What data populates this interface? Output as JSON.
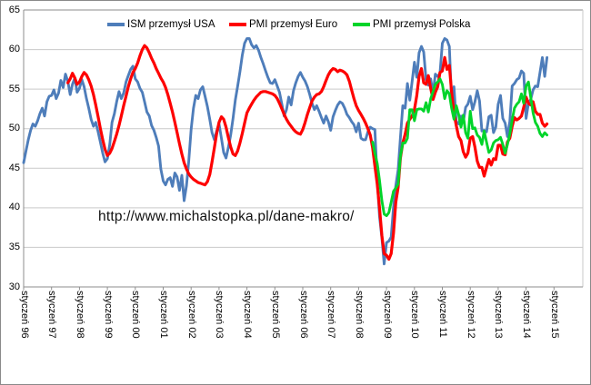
{
  "watermark": "http://www.michalstopka.pl/dane-makro/",
  "legend": [
    {
      "label": "ISM przemysł USA",
      "color": "#4E7DBA"
    },
    {
      "label": "PMI przemysł Euro",
      "color": "#FE0000"
    },
    {
      "label": "PMI przemysł Polska",
      "color": "#00D42A"
    }
  ],
  "colors": {
    "gridline": "#C9C9C9",
    "axis": "#8E8E8E",
    "background": "#FFFFFF"
  },
  "chart_data": {
    "type": "line",
    "title": "",
    "xlabel": "",
    "ylabel": "",
    "grid": true,
    "legend_position": "top-inside",
    "x_axis": {
      "unit": "month",
      "start": "styczeń 96",
      "tick_every_months": 12,
      "tick_labels": [
        "styczeń 96",
        "styczeń 97",
        "styczeń 98",
        "styczeń 99",
        "styczeń 00",
        "styczeń 01",
        "styczeń 02",
        "styczeń 03",
        "styczeń 04",
        "styczeń 05",
        "styczeń 06",
        "styczeń 07",
        "styczeń 08",
        "styczeń 09",
        "styczeń 10",
        "styczeń 11",
        "styczeń 12",
        "styczeń 13",
        "styczeń 14",
        "styczeń 15"
      ]
    },
    "y_axis": {
      "min": 30,
      "max": 65,
      "step": 5,
      "tick_labels": [
        "30",
        "35",
        "40",
        "45",
        "50",
        "55",
        "60",
        "65"
      ]
    },
    "series": [
      {
        "name": "ISM przemysł USA",
        "color": "#4E7DBA",
        "line_width": 2.9,
        "start_month_index": 0,
        "values": [
          45.7,
          47.2,
          48.6,
          49.8,
          50.6,
          50.3,
          51.0,
          51.9,
          52.6,
          51.6,
          53.4,
          54.1,
          54.2,
          54.9,
          53.8,
          54.5,
          56.1,
          55.2,
          56.9,
          56.0,
          54.3,
          55.6,
          56.4,
          54.6,
          55.1,
          56.2,
          55.3,
          53.8,
          52.6,
          51.2,
          50.3,
          50.8,
          49.6,
          48.3,
          46.9,
          45.8,
          46.2,
          48.0,
          50.8,
          51.9,
          53.4,
          54.7,
          53.8,
          54.5,
          55.9,
          56.7,
          57.5,
          57.9,
          56.3,
          55.9,
          55.1,
          54.6,
          53.4,
          52.1,
          51.6,
          50.4,
          49.8,
          48.9,
          47.8,
          44.9,
          43.4,
          42.9,
          43.6,
          43.8,
          42.7,
          44.4,
          43.9,
          42.2,
          44.1,
          40.9,
          42.8,
          45.9,
          49.9,
          52.6,
          54.2,
          53.8,
          54.9,
          55.3,
          54.1,
          52.8,
          51.2,
          49.5,
          48.6,
          49.7,
          50.6,
          48.8,
          47.0,
          46.3,
          47.6,
          49.2,
          51.3,
          53.6,
          55.4,
          57.2,
          59.3,
          60.8,
          61.4,
          61.4,
          60.6,
          60.2,
          60.5,
          59.9,
          59.0,
          58.2,
          57.3,
          56.5,
          55.8,
          55.7,
          56.2,
          55.4,
          54.6,
          53.1,
          51.6,
          52.4,
          54.0,
          53.0,
          54.8,
          55.8,
          56.6,
          57.1,
          56.5,
          56.0,
          55.3,
          54.3,
          53.2,
          52.4,
          52.9,
          52.2,
          51.4,
          50.7,
          51.6,
          50.9,
          49.8,
          51.5,
          52.3,
          53.0,
          53.4,
          53.2,
          52.6,
          51.8,
          51.4,
          50.9,
          50.5,
          49.6,
          50.7,
          48.8,
          48.6,
          48.6,
          49.6,
          50.2,
          50.0,
          49.9,
          43.5,
          38.9,
          36.2,
          32.9,
          35.6,
          35.8,
          36.3,
          40.1,
          42.8,
          44.8,
          48.9,
          52.9,
          52.6,
          55.7,
          53.6,
          55.9,
          58.4,
          56.5,
          59.6,
          60.4,
          59.7,
          56.2,
          55.5,
          56.3,
          54.4,
          56.9,
          56.6,
          57.0,
          60.8,
          61.4,
          61.2,
          60.4,
          53.5,
          55.3,
          50.9,
          50.6,
          51.6,
          50.8,
          52.7,
          53.1,
          54.1,
          52.4,
          53.4,
          54.8,
          53.5,
          49.7,
          49.8,
          49.6,
          51.5,
          51.7,
          49.5,
          50.2,
          53.1,
          54.2,
          51.3,
          50.7,
          49.0,
          50.9,
          55.4,
          55.7,
          56.2,
          56.4,
          57.3,
          57.0,
          51.3,
          53.2,
          53.7,
          54.9,
          55.4,
          55.3,
          57.1,
          59.0,
          56.6,
          59.0
        ]
      },
      {
        "name": "PMI przemysł Euro",
        "color": "#FE0000",
        "line_width": 3.2,
        "start_month_index": 19,
        "values": [
          55.8,
          56.3,
          57.0,
          56.4,
          55.6,
          55.9,
          56.6,
          57.1,
          56.8,
          56.2,
          55.4,
          54.3,
          53.0,
          51.5,
          50.0,
          48.6,
          47.4,
          46.6,
          46.9,
          47.5,
          48.4,
          49.3,
          50.4,
          51.6,
          52.9,
          54.1,
          55.3,
          56.3,
          57.1,
          57.6,
          58.3,
          59.2,
          60.0,
          60.5,
          60.2,
          59.6,
          58.9,
          58.3,
          57.6,
          57.0,
          56.4,
          55.9,
          55.2,
          54.3,
          53.2,
          52.1,
          50.8,
          49.5,
          48.1,
          46.8,
          45.7,
          44.9,
          44.3,
          43.9,
          43.6,
          43.4,
          43.2,
          43.1,
          43.0,
          42.9,
          43.3,
          44.2,
          45.8,
          47.6,
          49.4,
          50.8,
          51.5,
          51.2,
          50.2,
          48.9,
          47.7,
          46.8,
          46.6,
          47.2,
          48.2,
          49.4,
          50.7,
          52.0,
          52.6,
          53.1,
          53.6,
          54.0,
          54.3,
          54.6,
          54.7,
          54.7,
          54.6,
          54.5,
          54.4,
          54.2,
          53.8,
          53.2,
          52.5,
          51.8,
          51.2,
          50.7,
          50.3,
          49.9,
          49.6,
          49.4,
          49.3,
          49.9,
          50.8,
          51.8,
          52.7,
          53.5,
          54.0,
          54.3,
          54.4,
          54.7,
          55.3,
          56.1,
          56.8,
          57.3,
          57.6,
          57.5,
          57.2,
          57.4,
          57.3,
          57.1,
          56.8,
          56.0,
          54.9,
          53.8,
          52.9,
          52.3,
          51.8,
          51.3,
          50.7,
          50.0,
          49.2,
          47.6,
          45.3,
          43.0,
          40.0,
          36.5,
          34.2,
          34.0,
          33.5,
          34.2,
          36.8,
          40.7,
          42.6,
          46.3,
          48.2,
          49.3,
          50.7,
          51.2,
          51.6,
          52.4,
          54.2,
          56.6,
          57.6,
          55.8,
          55.6,
          56.7,
          55.1,
          53.7,
          54.6,
          55.3,
          57.1,
          57.3,
          59.0,
          57.5,
          58.0,
          54.6,
          52.0,
          50.4,
          49.0,
          48.5,
          47.1,
          46.4,
          46.9,
          48.8,
          49.0,
          47.7,
          45.9,
          45.1,
          45.1,
          44.0,
          45.1,
          46.1,
          45.4,
          46.2,
          46.1,
          47.9,
          47.9,
          46.8,
          46.7,
          48.3,
          48.8,
          50.3,
          51.4,
          51.1,
          51.3,
          51.6,
          52.7,
          54.0,
          53.2,
          53.0,
          53.4,
          52.2,
          51.8,
          51.8,
          50.7,
          50.3,
          50.6
        ]
      },
      {
        "name": "PMI przemysł Polska",
        "color": "#00D42A",
        "line_width": 2.9,
        "start_month_index": 150,
        "values": [
          48.3,
          46.9,
          45.6,
          43.5,
          40.9,
          39.2,
          39.0,
          39.4,
          40.7,
          42.1,
          42.5,
          43.0,
          46.5,
          48.2,
          48.2,
          48.8,
          52.4,
          52.4,
          51.0,
          52.4,
          52.5,
          52.5,
          52.2,
          53.3,
          52.1,
          53.8,
          54.7,
          55.6,
          55.9,
          56.3,
          55.6,
          53.8,
          54.8,
          54.4,
          52.6,
          51.2,
          52.9,
          51.8,
          50.2,
          51.7,
          49.5,
          48.8,
          52.2,
          50.0,
          50.1,
          49.2,
          48.9,
          48.0,
          49.7,
          48.3,
          47.0,
          47.3,
          48.2,
          48.5,
          48.6,
          48.9,
          48.0,
          46.9,
          48.0,
          49.3,
          51.1,
          52.6,
          53.1,
          53.4,
          54.4,
          53.2,
          55.4,
          55.9,
          54.0,
          52.0,
          50.8,
          50.3,
          49.4,
          49.0,
          49.5,
          49.2
        ]
      }
    ]
  }
}
